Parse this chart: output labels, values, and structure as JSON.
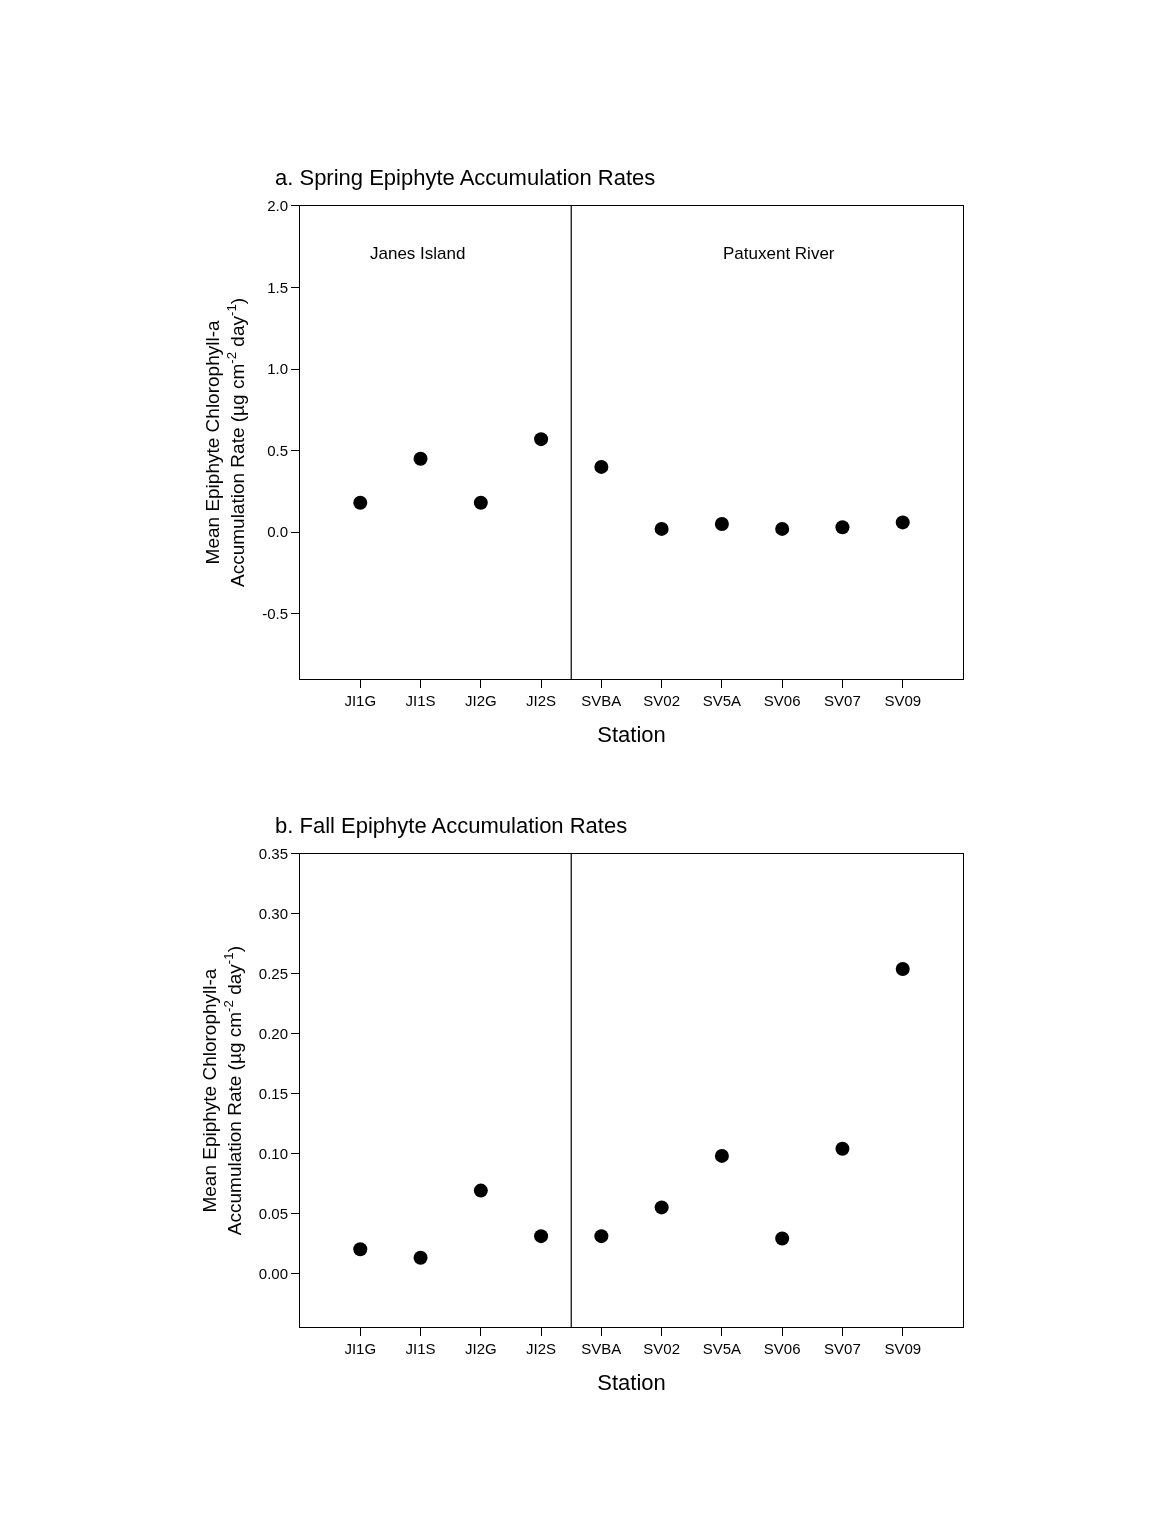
{
  "chart_data": [
    {
      "type": "scatter",
      "title": "a. Spring Epiphyte Accumulation Rates",
      "xlabel": "Station",
      "ylabel": "Mean Epiphyte Chlorophyll-a\nAccumulation Rate (µg cm$^{-2}$ day$^{-1}$)",
      "categories": [
        "JI1G",
        "JI1S",
        "JI2G",
        "JI2S",
        "SVBA",
        "SV02",
        "SV5A",
        "SV06",
        "SV07",
        "SV09"
      ],
      "series": [
        {
          "color": "#000000",
          "values": [
            0.18,
            0.45,
            0.18,
            0.57,
            0.4,
            0.02,
            0.05,
            0.02,
            0.03,
            0.06
          ]
        }
      ],
      "ylim": [
        -0.9,
        2.0
      ],
      "yticks": [
        -0.5,
        {
          "value": 0.0,
          "label": "0.0"
        },
        0.5,
        {
          "value": 1.0,
          "label": "1.0"
        },
        1.5,
        {
          "value": 2.0,
          "label": "2.0"
        }
      ],
      "annotations": [
        "Janes Island",
        "Patuxent River"
      ],
      "marker": "circle"
    },
    {
      "type": "scatter",
      "title": "b. Fall Epiphyte Accumulation Rates",
      "xlabel": "Station",
      "ylabel": "Mean Epiphyte Chlorophyll-a\nAccumulation Rate (µg cm$^{-2}$ day$^{-1}$)",
      "categories": [
        "JI1G",
        "JI1S",
        "JI2G",
        "JI2S",
        "SVBA",
        "SV02",
        "SV5A",
        "SV06",
        "SV07",
        "SV09"
      ],
      "series": [
        {
          "color": "#000000",
          "values": [
            0.02,
            0.013,
            0.069,
            0.031,
            0.031,
            0.055,
            0.098,
            0.029,
            0.104,
            0.254
          ]
        }
      ],
      "ylim": [
        -0.045,
        0.35
      ],
      "yticks": [
        {
          "value": 0.0,
          "label": "0.00"
        },
        0.05,
        {
          "value": 0.1,
          "label": "0.10"
        },
        0.15,
        {
          "value": 0.2,
          "label": "0.20"
        },
        0.25,
        {
          "value": 0.3,
          "label": "0.30"
        },
        0.35
      ],
      "marker": "circle"
    }
  ]
}
